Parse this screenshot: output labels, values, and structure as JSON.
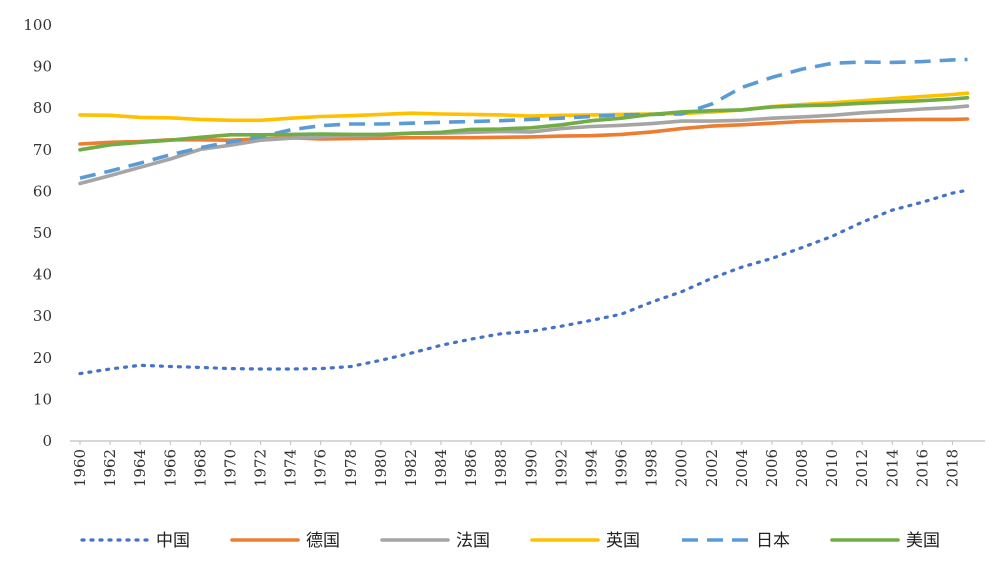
{
  "chart_data": {
    "type": "line",
    "title": "",
    "xlabel": "",
    "ylabel": "",
    "ylim": [
      0,
      100
    ],
    "yticks": [
      0,
      10,
      20,
      30,
      40,
      50,
      60,
      70,
      80,
      90,
      100
    ],
    "xticks": [
      1960,
      1962,
      1964,
      1966,
      1968,
      1970,
      1972,
      1974,
      1976,
      1978,
      1980,
      1982,
      1984,
      1986,
      1988,
      1990,
      1992,
      1994,
      1996,
      1998,
      2000,
      2002,
      2004,
      2006,
      2008,
      2010,
      2012,
      2014,
      2016,
      2018
    ],
    "grid": false,
    "legend_position": "bottom",
    "series": [
      {
        "name": "中国",
        "color": "#4472C4",
        "dash": "dot",
        "points": [
          [
            1960,
            16.2
          ],
          [
            1962,
            17.3
          ],
          [
            1964,
            18.2
          ],
          [
            1966,
            17.9
          ],
          [
            1968,
            17.7
          ],
          [
            1970,
            17.4
          ],
          [
            1972,
            17.3
          ],
          [
            1974,
            17.3
          ],
          [
            1976,
            17.4
          ],
          [
            1978,
            17.9
          ],
          [
            1980,
            19.4
          ],
          [
            1982,
            21.1
          ],
          [
            1984,
            23.0
          ],
          [
            1986,
            24.5
          ],
          [
            1988,
            25.8
          ],
          [
            1990,
            26.4
          ],
          [
            1992,
            27.6
          ],
          [
            1994,
            29.0
          ],
          [
            1996,
            30.5
          ],
          [
            1998,
            33.4
          ],
          [
            2000,
            35.9
          ],
          [
            2002,
            39.1
          ],
          [
            2004,
            41.8
          ],
          [
            2006,
            43.9
          ],
          [
            2008,
            46.5
          ],
          [
            2010,
            49.2
          ],
          [
            2012,
            52.6
          ],
          [
            2014,
            55.5
          ],
          [
            2016,
            57.4
          ],
          [
            2018,
            59.6
          ],
          [
            2019,
            60.3
          ]
        ]
      },
      {
        "name": "德国",
        "color": "#ED7D31",
        "dash": "solid",
        "points": [
          [
            1960,
            71.4
          ],
          [
            1962,
            71.8
          ],
          [
            1964,
            72.0
          ],
          [
            1966,
            72.4
          ],
          [
            1968,
            72.4
          ],
          [
            1970,
            72.3
          ],
          [
            1972,
            72.6
          ],
          [
            1974,
            72.9
          ],
          [
            1976,
            72.6
          ],
          [
            1978,
            72.7
          ],
          [
            1980,
            72.8
          ],
          [
            1982,
            72.9
          ],
          [
            1984,
            72.9
          ],
          [
            1986,
            72.9
          ],
          [
            1988,
            73.0
          ],
          [
            1990,
            73.1
          ],
          [
            1992,
            73.3
          ],
          [
            1994,
            73.4
          ],
          [
            1996,
            73.7
          ],
          [
            1998,
            74.3
          ],
          [
            2000,
            75.1
          ],
          [
            2002,
            75.7
          ],
          [
            2004,
            76.0
          ],
          [
            2006,
            76.4
          ],
          [
            2008,
            76.8
          ],
          [
            2010,
            77.0
          ],
          [
            2012,
            77.1
          ],
          [
            2014,
            77.2
          ],
          [
            2016,
            77.3
          ],
          [
            2018,
            77.3
          ],
          [
            2019,
            77.4
          ]
        ]
      },
      {
        "name": "法国",
        "color": "#A5A5A5",
        "dash": "solid",
        "points": [
          [
            1960,
            61.9
          ],
          [
            1962,
            63.8
          ],
          [
            1964,
            65.8
          ],
          [
            1966,
            67.8
          ],
          [
            1968,
            70.1
          ],
          [
            1970,
            71.1
          ],
          [
            1972,
            72.3
          ],
          [
            1974,
            72.8
          ],
          [
            1976,
            73.1
          ],
          [
            1978,
            73.4
          ],
          [
            1980,
            73.6
          ],
          [
            1982,
            74.0
          ],
          [
            1984,
            74.0
          ],
          [
            1986,
            74.2
          ],
          [
            1988,
            74.4
          ],
          [
            1990,
            74.3
          ],
          [
            1992,
            75.1
          ],
          [
            1994,
            75.6
          ],
          [
            1996,
            75.9
          ],
          [
            1998,
            76.3
          ],
          [
            2000,
            76.9
          ],
          [
            2002,
            76.9
          ],
          [
            2004,
            77.1
          ],
          [
            2006,
            77.6
          ],
          [
            2008,
            77.9
          ],
          [
            2010,
            78.3
          ],
          [
            2012,
            78.9
          ],
          [
            2014,
            79.3
          ],
          [
            2016,
            79.8
          ],
          [
            2018,
            80.2
          ],
          [
            2019,
            80.5
          ]
        ]
      },
      {
        "name": "英国",
        "color": "#FFC000",
        "dash": "solid",
        "points": [
          [
            1960,
            78.4
          ],
          [
            1962,
            78.3
          ],
          [
            1964,
            77.8
          ],
          [
            1966,
            77.7
          ],
          [
            1968,
            77.3
          ],
          [
            1970,
            77.1
          ],
          [
            1972,
            77.1
          ],
          [
            1974,
            77.6
          ],
          [
            1976,
            78.0
          ],
          [
            1978,
            78.2
          ],
          [
            1980,
            78.5
          ],
          [
            1982,
            78.8
          ],
          [
            1984,
            78.6
          ],
          [
            1986,
            78.5
          ],
          [
            1988,
            78.4
          ],
          [
            1990,
            78.1
          ],
          [
            1992,
            78.3
          ],
          [
            1994,
            78.4
          ],
          [
            1996,
            78.5
          ],
          [
            1998,
            78.6
          ],
          [
            2000,
            78.7
          ],
          [
            2002,
            79.1
          ],
          [
            2004,
            79.6
          ],
          [
            2006,
            80.4
          ],
          [
            2008,
            80.9
          ],
          [
            2010,
            81.3
          ],
          [
            2012,
            81.8
          ],
          [
            2014,
            82.3
          ],
          [
            2016,
            82.8
          ],
          [
            2018,
            83.3
          ],
          [
            2019,
            83.6
          ]
        ]
      },
      {
        "name": "日本",
        "color": "#5B9BD5",
        "dash": "dash",
        "points": [
          [
            1960,
            63.2
          ],
          [
            1962,
            64.9
          ],
          [
            1964,
            66.8
          ],
          [
            1966,
            68.8
          ],
          [
            1968,
            70.5
          ],
          [
            1970,
            71.9
          ],
          [
            1972,
            73.1
          ],
          [
            1974,
            74.8
          ],
          [
            1976,
            75.8
          ],
          [
            1978,
            76.2
          ],
          [
            1980,
            76.2
          ],
          [
            1982,
            76.4
          ],
          [
            1984,
            76.6
          ],
          [
            1986,
            76.8
          ],
          [
            1988,
            77.0
          ],
          [
            1990,
            77.3
          ],
          [
            1992,
            77.6
          ],
          [
            1994,
            78.0
          ],
          [
            1996,
            78.4
          ],
          [
            1998,
            78.5
          ],
          [
            2000,
            78.6
          ],
          [
            2002,
            81.0
          ],
          [
            2004,
            85.0
          ],
          [
            2006,
            87.4
          ],
          [
            2008,
            89.4
          ],
          [
            2010,
            90.8
          ],
          [
            2012,
            91.1
          ],
          [
            2014,
            91.0
          ],
          [
            2016,
            91.2
          ],
          [
            2018,
            91.6
          ],
          [
            2019,
            91.7
          ]
        ]
      },
      {
        "name": "美国",
        "color": "#70AD47",
        "dash": "solid",
        "points": [
          [
            1960,
            70.0
          ],
          [
            1962,
            71.2
          ],
          [
            1964,
            71.8
          ],
          [
            1966,
            72.3
          ],
          [
            1968,
            73.0
          ],
          [
            1970,
            73.6
          ],
          [
            1972,
            73.6
          ],
          [
            1974,
            73.7
          ],
          [
            1976,
            73.8
          ],
          [
            1978,
            73.7
          ],
          [
            1980,
            73.7
          ],
          [
            1982,
            74.0
          ],
          [
            1984,
            74.2
          ],
          [
            1986,
            74.9
          ],
          [
            1988,
            75.0
          ],
          [
            1990,
            75.3
          ],
          [
            1992,
            76.0
          ],
          [
            1994,
            77.0
          ],
          [
            1996,
            77.6
          ],
          [
            1998,
            78.5
          ],
          [
            2000,
            79.1
          ],
          [
            2002,
            79.4
          ],
          [
            2004,
            79.6
          ],
          [
            2006,
            80.3
          ],
          [
            2008,
            80.6
          ],
          [
            2010,
            80.8
          ],
          [
            2012,
            81.2
          ],
          [
            2014,
            81.5
          ],
          [
            2016,
            81.8
          ],
          [
            2018,
            82.2
          ],
          [
            2019,
            82.5
          ]
        ]
      }
    ]
  }
}
